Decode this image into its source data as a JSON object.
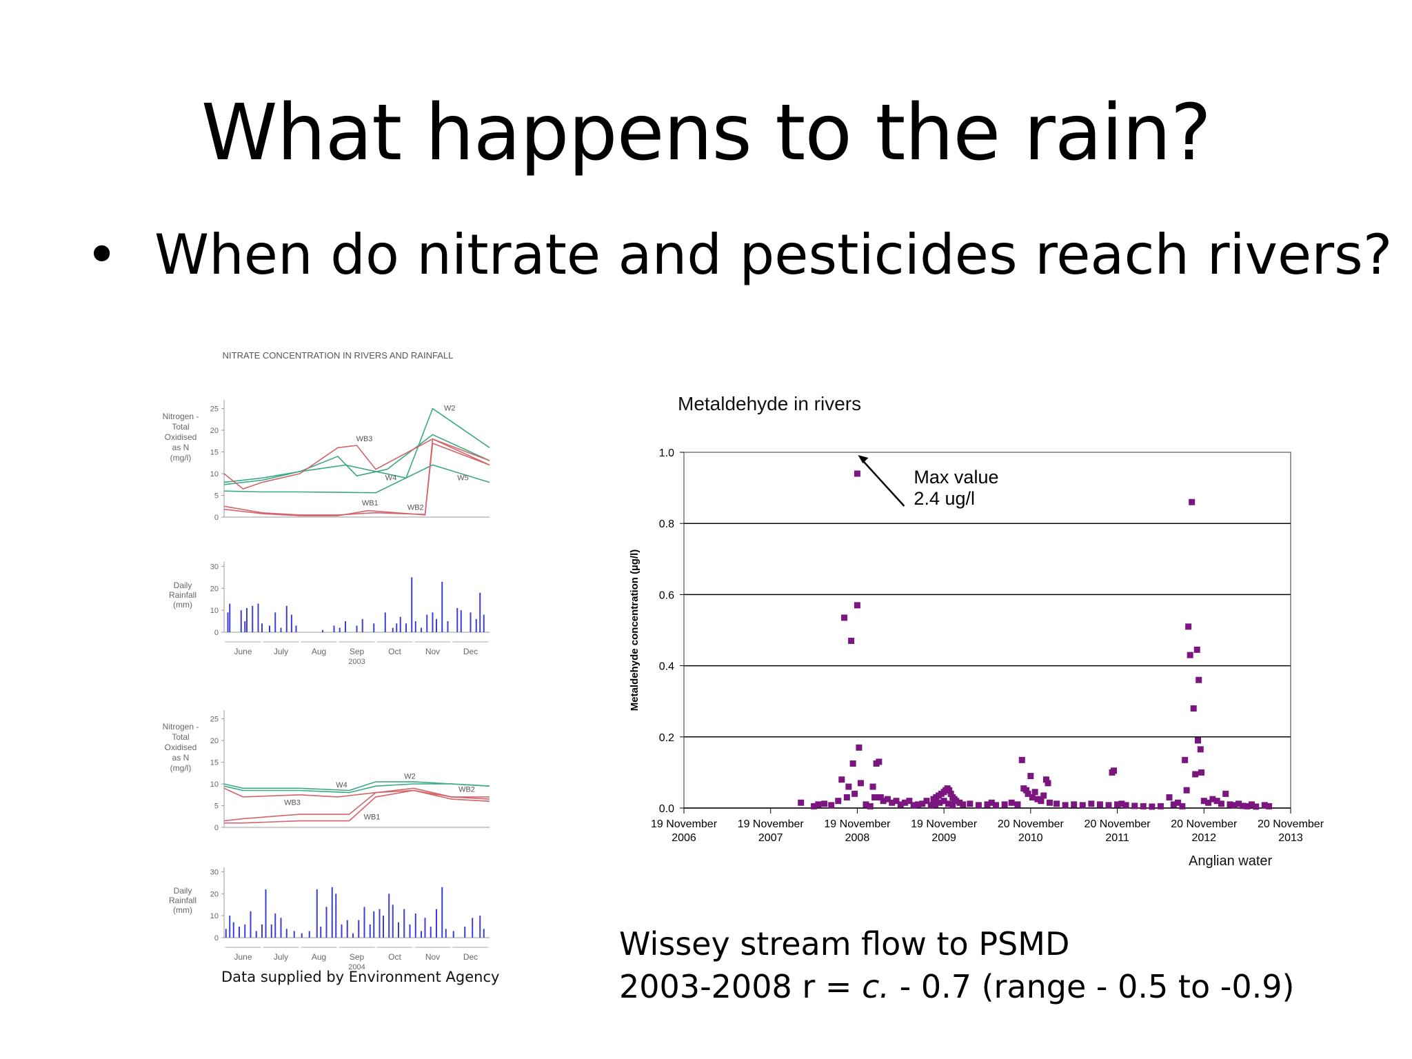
{
  "slide": {
    "title": "What happens to the rain?",
    "bullet": "When do nitrate and pesticides reach rivers?",
    "left_credit": "Data supplied by Environment Agency",
    "right_source": "Anglian water",
    "wissey_line1": "Wissey stream flow to PSMD",
    "wissey_line2_a": "2003-2008  r = ",
    "wissey_line2_c": "c.",
    "wissey_line2_b": " - 0.7 (range - 0.5 to -0.9)",
    "colors": {
      "green": "#3aa886",
      "red": "#d4636a",
      "blue": "#3b3bd8",
      "purple": "#7b1580"
    }
  },
  "chart_data": [
    {
      "type": "line",
      "title": "NITRATE CONCENTRATION IN RIVERS AND RAINFALL",
      "ylabel": [
        "Nitrogen -",
        "Total",
        "Oxidised",
        "as N",
        "(mg/l)"
      ],
      "yticks": [
        0,
        5,
        10,
        15,
        20,
        25
      ],
      "ylim": [
        0,
        27
      ],
      "xlim": [
        0,
        7
      ],
      "series": [
        {
          "name": "W2",
          "color": "green",
          "x": [
            0,
            1,
            2,
            3.2,
            4.8,
            5.5,
            7
          ],
          "y": [
            8,
            9,
            10.5,
            12,
            9,
            25,
            16
          ]
        },
        {
          "name": "W4",
          "color": "green",
          "x": [
            0,
            1,
            2,
            3,
            3.5,
            4.3,
            5.5,
            7
          ],
          "y": [
            7.5,
            8.5,
            10.5,
            14,
            9.5,
            11,
            19,
            13
          ]
        },
        {
          "name": "W5",
          "color": "green",
          "x": [
            0,
            1,
            2,
            3,
            4,
            5.5,
            7
          ],
          "y": [
            6,
            5.8,
            5.8,
            5.7,
            5.6,
            12,
            8
          ]
        },
        {
          "name": "WB3",
          "color": "red",
          "x": [
            0,
            0.5,
            1,
            2,
            3,
            3.5,
            4,
            5.5,
            7
          ],
          "y": [
            10,
            6.5,
            8,
            10,
            16,
            16.5,
            11,
            18,
            12
          ]
        },
        {
          "name": "WB1",
          "color": "red",
          "x": [
            0,
            1,
            2,
            3,
            4,
            5.3,
            5.5,
            7
          ],
          "y": [
            2.5,
            1,
            0.5,
            0.5,
            1,
            0.6,
            18,
            13
          ]
        },
        {
          "name": "WB2",
          "color": "red",
          "x": [
            0,
            1,
            2,
            3,
            3.8,
            5.3,
            5.5,
            7
          ],
          "y": [
            1.8,
            0.8,
            0.3,
            0.3,
            1.5,
            0.5,
            17,
            12
          ]
        }
      ],
      "labels": [
        {
          "text": "W2",
          "x": 5.95,
          "y": 24.5
        },
        {
          "text": "WB3",
          "x": 3.7,
          "y": 17.5
        },
        {
          "text": "W4",
          "x": 4.4,
          "y": 8.5
        },
        {
          "text": "W5",
          "x": 6.3,
          "y": 8.5
        },
        {
          "text": "WB1",
          "x": 3.85,
          "y": 2.7
        },
        {
          "text": "WB2",
          "x": 5.05,
          "y": 1.7
        }
      ]
    },
    {
      "type": "bar",
      "ylabel": [
        "Daily",
        "Rainfall",
        "(mm)"
      ],
      "yticks": [
        0,
        10,
        20,
        30
      ],
      "ylim": [
        0,
        32
      ],
      "categories": [
        "June",
        "July",
        "Aug",
        "Sep",
        "Oct",
        "Nov",
        "Dec"
      ],
      "year": "2003",
      "values": [
        [
          0.1,
          9
        ],
        [
          0.15,
          13
        ],
        [
          0.45,
          10
        ],
        [
          0.55,
          5
        ],
        [
          0.6,
          11
        ],
        [
          0.75,
          12
        ],
        [
          0.9,
          13
        ],
        [
          1.0,
          4
        ],
        [
          1.2,
          3
        ],
        [
          1.35,
          9
        ],
        [
          1.5,
          2
        ],
        [
          1.65,
          12
        ],
        [
          1.78,
          8
        ],
        [
          1.9,
          3
        ],
        [
          2.6,
          1
        ],
        [
          2.9,
          3
        ],
        [
          3.05,
          2
        ],
        [
          3.2,
          5
        ],
        [
          3.5,
          3
        ],
        [
          3.65,
          6
        ],
        [
          3.95,
          4
        ],
        [
          4.25,
          9
        ],
        [
          4.45,
          2
        ],
        [
          4.55,
          4
        ],
        [
          4.65,
          7
        ],
        [
          4.8,
          4
        ],
        [
          4.95,
          25
        ],
        [
          5.05,
          5
        ],
        [
          5.2,
          2
        ],
        [
          5.35,
          8
        ],
        [
          5.5,
          9
        ],
        [
          5.6,
          6
        ],
        [
          5.75,
          23
        ],
        [
          5.9,
          5
        ],
        [
          6.15,
          11
        ],
        [
          6.25,
          10
        ],
        [
          6.5,
          9
        ],
        [
          6.65,
          6
        ],
        [
          6.75,
          18
        ],
        [
          6.85,
          8
        ]
      ]
    },
    {
      "type": "line",
      "ylabel": [
        "Nitrogen -",
        "Total",
        "Oxidised",
        "as N",
        "(mg/l)"
      ],
      "yticks": [
        0,
        5,
        10,
        15,
        20,
        25
      ],
      "ylim": [
        0,
        27
      ],
      "xlim": [
        0,
        7
      ],
      "series": [
        {
          "name": "W2",
          "color": "green",
          "x": [
            0,
            0.5,
            2,
            3.3,
            4,
            5,
            6,
            7
          ],
          "y": [
            10,
            9,
            9,
            8.5,
            10.5,
            10.5,
            10,
            9.5
          ]
        },
        {
          "name": "W4",
          "color": "green",
          "x": [
            0,
            0.5,
            2,
            3.3,
            4,
            5,
            6,
            7
          ],
          "y": [
            9.5,
            8.5,
            8.5,
            8,
            9.5,
            10,
            10,
            9.5
          ]
        },
        {
          "name": "WB2",
          "color": "red",
          "x": [
            0,
            0.5,
            2,
            3,
            4,
            5,
            6,
            7
          ],
          "y": [
            9,
            7,
            7.5,
            7,
            8,
            8.5,
            7,
            7
          ]
        },
        {
          "name": "WB3",
          "color": "red",
          "x": [
            0,
            0.5,
            2,
            3.3,
            4,
            5,
            6,
            7
          ],
          "y": [
            1.5,
            2,
            3,
            3,
            8,
            9,
            7,
            6.5
          ]
        },
        {
          "name": "WB1",
          "color": "red",
          "x": [
            0,
            0.5,
            2,
            3.3,
            4,
            5,
            6,
            7
          ],
          "y": [
            1,
            1,
            1.5,
            1.5,
            7,
            8.5,
            6.5,
            6
          ]
        }
      ],
      "labels": [
        {
          "text": "W2",
          "x": 4.9,
          "y": 11.2
        },
        {
          "text": "W4",
          "x": 3.1,
          "y": 9.2
        },
        {
          "text": "WB3",
          "x": 1.8,
          "y": 5.2
        },
        {
          "text": "WB2",
          "x": 6.4,
          "y": 8.2
        },
        {
          "text": "WB1",
          "x": 3.9,
          "y": 1.8
        }
      ]
    },
    {
      "type": "bar",
      "ylabel": [
        "Daily",
        "Rainfall",
        "(mm)"
      ],
      "yticks": [
        0,
        10,
        20,
        30
      ],
      "ylim": [
        0,
        32
      ],
      "categories": [
        "June",
        "July",
        "Aug",
        "Sep",
        "Oct",
        "Nov",
        "Dec"
      ],
      "year": "2004",
      "values": [
        [
          0.05,
          4
        ],
        [
          0.15,
          10
        ],
        [
          0.25,
          7
        ],
        [
          0.4,
          5
        ],
        [
          0.55,
          6
        ],
        [
          0.7,
          12
        ],
        [
          0.85,
          3
        ],
        [
          1.0,
          6
        ],
        [
          1.1,
          22
        ],
        [
          1.25,
          6
        ],
        [
          1.35,
          11
        ],
        [
          1.5,
          9
        ],
        [
          1.65,
          4
        ],
        [
          1.85,
          3
        ],
        [
          2.05,
          2
        ],
        [
          2.25,
          3
        ],
        [
          2.45,
          22
        ],
        [
          2.55,
          5
        ],
        [
          2.7,
          14
        ],
        [
          2.85,
          23
        ],
        [
          2.95,
          20
        ],
        [
          3.1,
          6
        ],
        [
          3.25,
          8
        ],
        [
          3.4,
          2
        ],
        [
          3.55,
          8
        ],
        [
          3.7,
          14
        ],
        [
          3.85,
          6
        ],
        [
          3.95,
          12
        ],
        [
          4.1,
          13
        ],
        [
          4.2,
          10
        ],
        [
          4.35,
          20
        ],
        [
          4.45,
          15
        ],
        [
          4.6,
          7
        ],
        [
          4.75,
          13
        ],
        [
          4.9,
          6
        ],
        [
          5.05,
          11
        ],
        [
          5.2,
          3
        ],
        [
          5.3,
          9
        ],
        [
          5.45,
          5
        ],
        [
          5.6,
          13
        ],
        [
          5.75,
          23
        ],
        [
          5.85,
          4
        ],
        [
          6.05,
          3
        ],
        [
          6.35,
          5
        ],
        [
          6.55,
          9
        ],
        [
          6.75,
          10
        ],
        [
          6.85,
          4
        ]
      ]
    },
    {
      "type": "scatter",
      "title": "Metaldehyde in rivers",
      "ylabel": "Metaldehyde concentration (µg/l)",
      "ylim": [
        0,
        1.0
      ],
      "yticks": [
        "0.0",
        "0.2",
        "0.4",
        "0.6",
        "0.8",
        "1.0"
      ],
      "grid": true,
      "xticks": [
        [
          "19 November",
          "2006"
        ],
        [
          "19 November",
          "2007"
        ],
        [
          "19 November",
          "2008"
        ],
        [
          "19 November",
          "2009"
        ],
        [
          "20 November",
          "2010"
        ],
        [
          "20 November",
          "2011"
        ],
        [
          "20 November",
          "2012"
        ],
        [
          "20 November",
          "2013"
        ]
      ],
      "annotation": {
        "lines": [
          "Max value",
          "2.4 ug/l"
        ],
        "x": 2.0,
        "y": 1.0
      },
      "points": [
        [
          1.35,
          0.015
        ],
        [
          1.5,
          0.005
        ],
        [
          1.55,
          0.01
        ],
        [
          1.62,
          0.012
        ],
        [
          1.7,
          0.008
        ],
        [
          1.78,
          0.02
        ],
        [
          1.82,
          0.08
        ],
        [
          1.85,
          0.535
        ],
        [
          1.88,
          0.03
        ],
        [
          1.9,
          0.06
        ],
        [
          1.93,
          0.47
        ],
        [
          1.95,
          0.125
        ],
        [
          1.97,
          0.04
        ],
        [
          2.0,
          0.94
        ],
        [
          2.0,
          0.57
        ],
        [
          2.02,
          0.17
        ],
        [
          2.04,
          0.07
        ],
        [
          2.1,
          0.01
        ],
        [
          2.15,
          0.005
        ],
        [
          2.18,
          0.06
        ],
        [
          2.2,
          0.03
        ],
        [
          2.22,
          0.125
        ],
        [
          2.25,
          0.13
        ],
        [
          2.27,
          0.03
        ],
        [
          2.3,
          0.02
        ],
        [
          2.35,
          0.025
        ],
        [
          2.4,
          0.015
        ],
        [
          2.45,
          0.02
        ],
        [
          2.5,
          0.01
        ],
        [
          2.55,
          0.015
        ],
        [
          2.6,
          0.02
        ],
        [
          2.65,
          0.008
        ],
        [
          2.7,
          0.01
        ],
        [
          2.75,
          0.012
        ],
        [
          2.8,
          0.02
        ],
        [
          2.85,
          0.008
        ],
        [
          2.9,
          0.01
        ],
        [
          2.95,
          0.015
        ],
        [
          3.0,
          0.02
        ],
        [
          3.05,
          0.012
        ],
        [
          3.1,
          0.008
        ],
        [
          2.88,
          0.025
        ],
        [
          2.91,
          0.03
        ],
        [
          2.94,
          0.035
        ],
        [
          2.97,
          0.04
        ],
        [
          3.0,
          0.045
        ],
        [
          3.02,
          0.05
        ],
        [
          3.04,
          0.055
        ],
        [
          3.06,
          0.05
        ],
        [
          3.08,
          0.04
        ],
        [
          3.1,
          0.03
        ],
        [
          3.12,
          0.025
        ],
        [
          3.14,
          0.02
        ],
        [
          3.18,
          0.015
        ],
        [
          3.22,
          0.01
        ],
        [
          3.3,
          0.012
        ],
        [
          3.4,
          0.008
        ],
        [
          3.5,
          0.01
        ],
        [
          3.55,
          0.015
        ],
        [
          3.6,
          0.008
        ],
        [
          3.7,
          0.01
        ],
        [
          3.78,
          0.015
        ],
        [
          3.85,
          0.01
        ],
        [
          3.9,
          0.135
        ],
        [
          3.92,
          0.055
        ],
        [
          3.95,
          0.05
        ],
        [
          3.97,
          0.04
        ],
        [
          4.0,
          0.09
        ],
        [
          4.02,
          0.03
        ],
        [
          4.05,
          0.045
        ],
        [
          4.08,
          0.025
        ],
        [
          4.12,
          0.02
        ],
        [
          4.15,
          0.035
        ],
        [
          4.18,
          0.08
        ],
        [
          4.2,
          0.07
        ],
        [
          4.22,
          0.015
        ],
        [
          4.3,
          0.012
        ],
        [
          4.4,
          0.008
        ],
        [
          4.5,
          0.01
        ],
        [
          4.6,
          0.008
        ],
        [
          4.7,
          0.012
        ],
        [
          4.8,
          0.01
        ],
        [
          4.9,
          0.008
        ],
        [
          4.94,
          0.1
        ],
        [
          4.96,
          0.105
        ],
        [
          5.0,
          0.01
        ],
        [
          5.05,
          0.012
        ],
        [
          5.1,
          0.008
        ],
        [
          5.2,
          0.006
        ],
        [
          5.3,
          0.005
        ],
        [
          5.4,
          0.004
        ],
        [
          5.5,
          0.005
        ],
        [
          5.6,
          0.03
        ],
        [
          5.65,
          0.01
        ],
        [
          5.7,
          0.015
        ],
        [
          5.75,
          0.005
        ],
        [
          5.78,
          0.135
        ],
        [
          5.8,
          0.05
        ],
        [
          5.82,
          0.51
        ],
        [
          5.84,
          0.43
        ],
        [
          5.86,
          0.86
        ],
        [
          5.88,
          0.28
        ],
        [
          5.9,
          0.095
        ],
        [
          5.92,
          0.445
        ],
        [
          5.93,
          0.19
        ],
        [
          5.94,
          0.36
        ],
        [
          5.96,
          0.165
        ],
        [
          5.97,
          0.1
        ],
        [
          6.0,
          0.02
        ],
        [
          6.05,
          0.015
        ],
        [
          6.1,
          0.025
        ],
        [
          6.15,
          0.02
        ],
        [
          6.2,
          0.012
        ],
        [
          6.25,
          0.04
        ],
        [
          6.3,
          0.01
        ],
        [
          6.35,
          0.008
        ],
        [
          6.4,
          0.012
        ],
        [
          6.45,
          0.006
        ],
        [
          6.5,
          0.005
        ],
        [
          6.55,
          0.01
        ],
        [
          6.6,
          0.004
        ],
        [
          6.7,
          0.008
        ],
        [
          6.75,
          0.005
        ]
      ]
    }
  ]
}
